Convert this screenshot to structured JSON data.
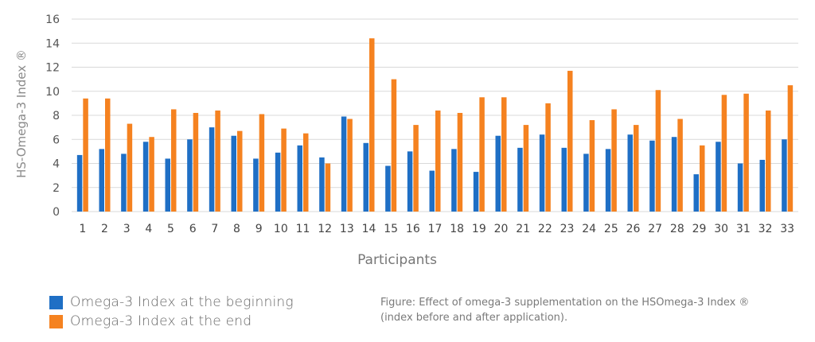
{
  "chart_data": {
    "type": "bar",
    "ylabel": "HS-Omega-3 Index ®",
    "xlabel": "Participants",
    "ylim": [
      0,
      16
    ],
    "yticks": [
      0,
      2,
      4,
      6,
      8,
      10,
      12,
      14,
      16
    ],
    "grid": true,
    "legend_position": "bottom-left",
    "categories": [
      "1",
      "2",
      "3",
      "4",
      "5",
      "6",
      "7",
      "8",
      "9",
      "10",
      "11",
      "12",
      "13",
      "14",
      "15",
      "16",
      "17",
      "18",
      "19",
      "20",
      "21",
      "22",
      "23",
      "24",
      "25",
      "26",
      "27",
      "28",
      "29",
      "30",
      "31",
      "32",
      "33"
    ],
    "series": [
      {
        "name": "Omega-3 Index at the beginning",
        "color": "#1f6fc5",
        "values": [
          4.7,
          5.2,
          4.8,
          5.8,
          4.4,
          6.0,
          7.0,
          6.3,
          4.4,
          4.9,
          5.5,
          4.5,
          7.9,
          5.7,
          3.8,
          5.0,
          3.4,
          5.2,
          3.3,
          6.3,
          5.3,
          6.4,
          5.3,
          4.8,
          5.2,
          6.4,
          5.9,
          6.2,
          3.1,
          5.8,
          4.0,
          4.3,
          6.0
        ]
      },
      {
        "name": "Omega-3 Index at the end",
        "color": "#f58220",
        "values": [
          9.4,
          9.4,
          7.3,
          6.2,
          8.5,
          8.2,
          8.4,
          6.7,
          8.1,
          6.9,
          6.5,
          4.0,
          7.7,
          14.4,
          11.0,
          7.2,
          8.4,
          8.2,
          9.5,
          9.5,
          7.2,
          9.0,
          11.7,
          7.6,
          8.5,
          7.2,
          10.1,
          7.7,
          5.5,
          9.7,
          9.8,
          8.4,
          10.5
        ]
      }
    ]
  },
  "caption": {
    "line1": "Figure: Effect of omega-3 supplementation on the HSOmega-3 Index ®",
    "line2": "(index before and after application)."
  }
}
